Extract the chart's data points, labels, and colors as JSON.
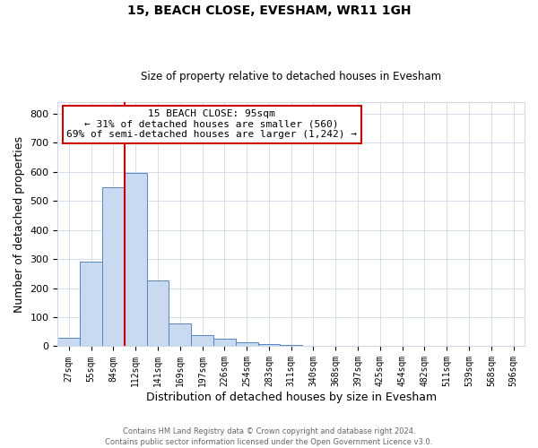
{
  "title": "15, BEACH CLOSE, EVESHAM, WR11 1GH",
  "subtitle": "Size of property relative to detached houses in Evesham",
  "xlabel": "Distribution of detached houses by size in Evesham",
  "ylabel": "Number of detached properties",
  "bin_labels": [
    "27sqm",
    "55sqm",
    "84sqm",
    "112sqm",
    "141sqm",
    "169sqm",
    "197sqm",
    "226sqm",
    "254sqm",
    "283sqm",
    "311sqm",
    "340sqm",
    "368sqm",
    "397sqm",
    "425sqm",
    "454sqm",
    "482sqm",
    "511sqm",
    "539sqm",
    "568sqm",
    "596sqm"
  ],
  "bin_values": [
    28,
    290,
    547,
    597,
    225,
    80,
    38,
    25,
    13,
    8,
    6,
    0,
    0,
    0,
    0,
    0,
    0,
    0,
    0,
    0,
    0
  ],
  "bar_color": "#c9d9f0",
  "bar_edge_color": "#5585c5",
  "bar_width": 1.0,
  "vline_x": 2.5,
  "vline_color": "#cc0000",
  "annotation_text": "15 BEACH CLOSE: 95sqm\n← 31% of detached houses are smaller (560)\n69% of semi-detached houses are larger (1,242) →",
  "annotation_box_color": "#ffffff",
  "annotation_box_edge_color": "#cc0000",
  "ylim": [
    0,
    840
  ],
  "yticks": [
    0,
    100,
    200,
    300,
    400,
    500,
    600,
    700,
    800
  ],
  "footer1": "Contains HM Land Registry data © Crown copyright and database right 2024.",
  "footer2": "Contains public sector information licensed under the Open Government Licence v3.0.",
  "background_color": "#ffffff",
  "grid_color": "#d0d8e8"
}
